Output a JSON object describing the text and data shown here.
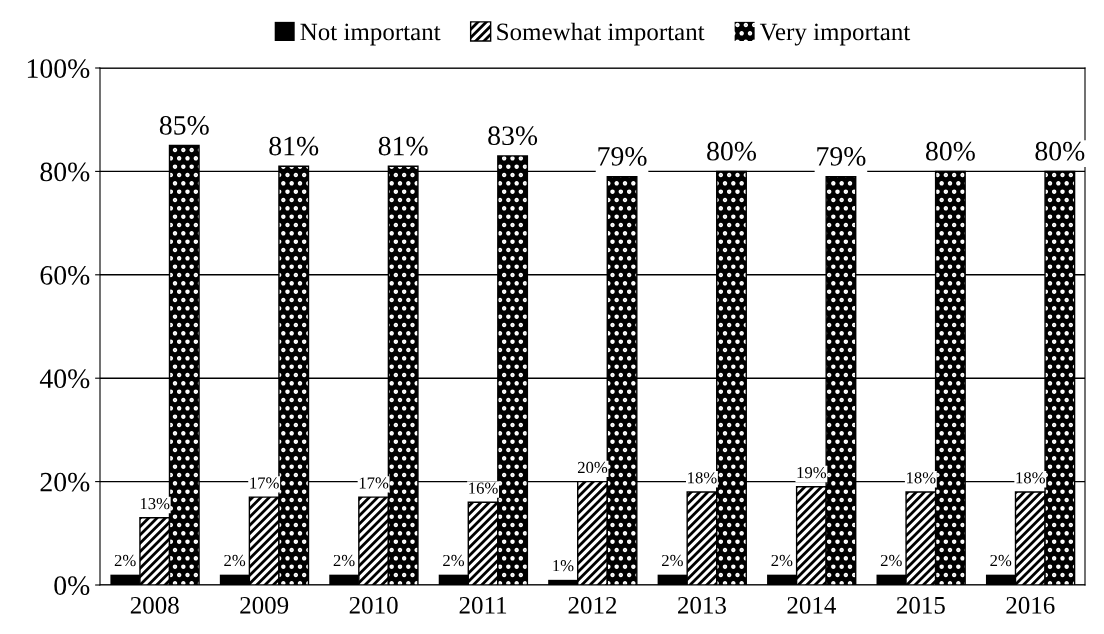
{
  "chart_data": {
    "type": "bar",
    "categories": [
      "2008",
      "2009",
      "2010",
      "2011",
      "2012",
      "2013",
      "2014",
      "2015",
      "2016"
    ],
    "series": [
      {
        "name": "Not important",
        "color": "#000000",
        "values": [
          2,
          2,
          2,
          2,
          1,
          2,
          2,
          2,
          2
        ],
        "value_labels": [
          "2%",
          "2%",
          "2%",
          "2%",
          "1%",
          "2%",
          "2%",
          "2%",
          "2%"
        ]
      },
      {
        "name": "Somewhat important",
        "color": "#000000",
        "values": [
          13,
          17,
          17,
          16,
          20,
          18,
          19,
          18,
          18
        ],
        "value_labels": [
          "13%",
          "17%",
          "17%",
          "16%",
          "20%",
          "18%",
          "19%",
          "18%",
          "18%"
        ]
      },
      {
        "name": "Very important",
        "color": "#000000",
        "values": [
          85,
          81,
          81,
          83,
          79,
          80,
          79,
          80,
          80
        ],
        "value_labels": [
          "85%",
          "81%",
          "81%",
          "83%",
          "79%",
          "80%",
          "79%",
          "80%",
          "80%"
        ]
      }
    ],
    "ylim": [
      0,
      100
    ],
    "yticks": [
      {
        "value": 0,
        "label": "0%"
      },
      {
        "value": 20,
        "label": "20%"
      },
      {
        "value": 40,
        "label": "40%"
      },
      {
        "value": 60,
        "label": "60%"
      },
      {
        "value": 80,
        "label": "80%"
      },
      {
        "value": 100,
        "label": "100%"
      }
    ],
    "grid": "y",
    "legend": "top"
  }
}
